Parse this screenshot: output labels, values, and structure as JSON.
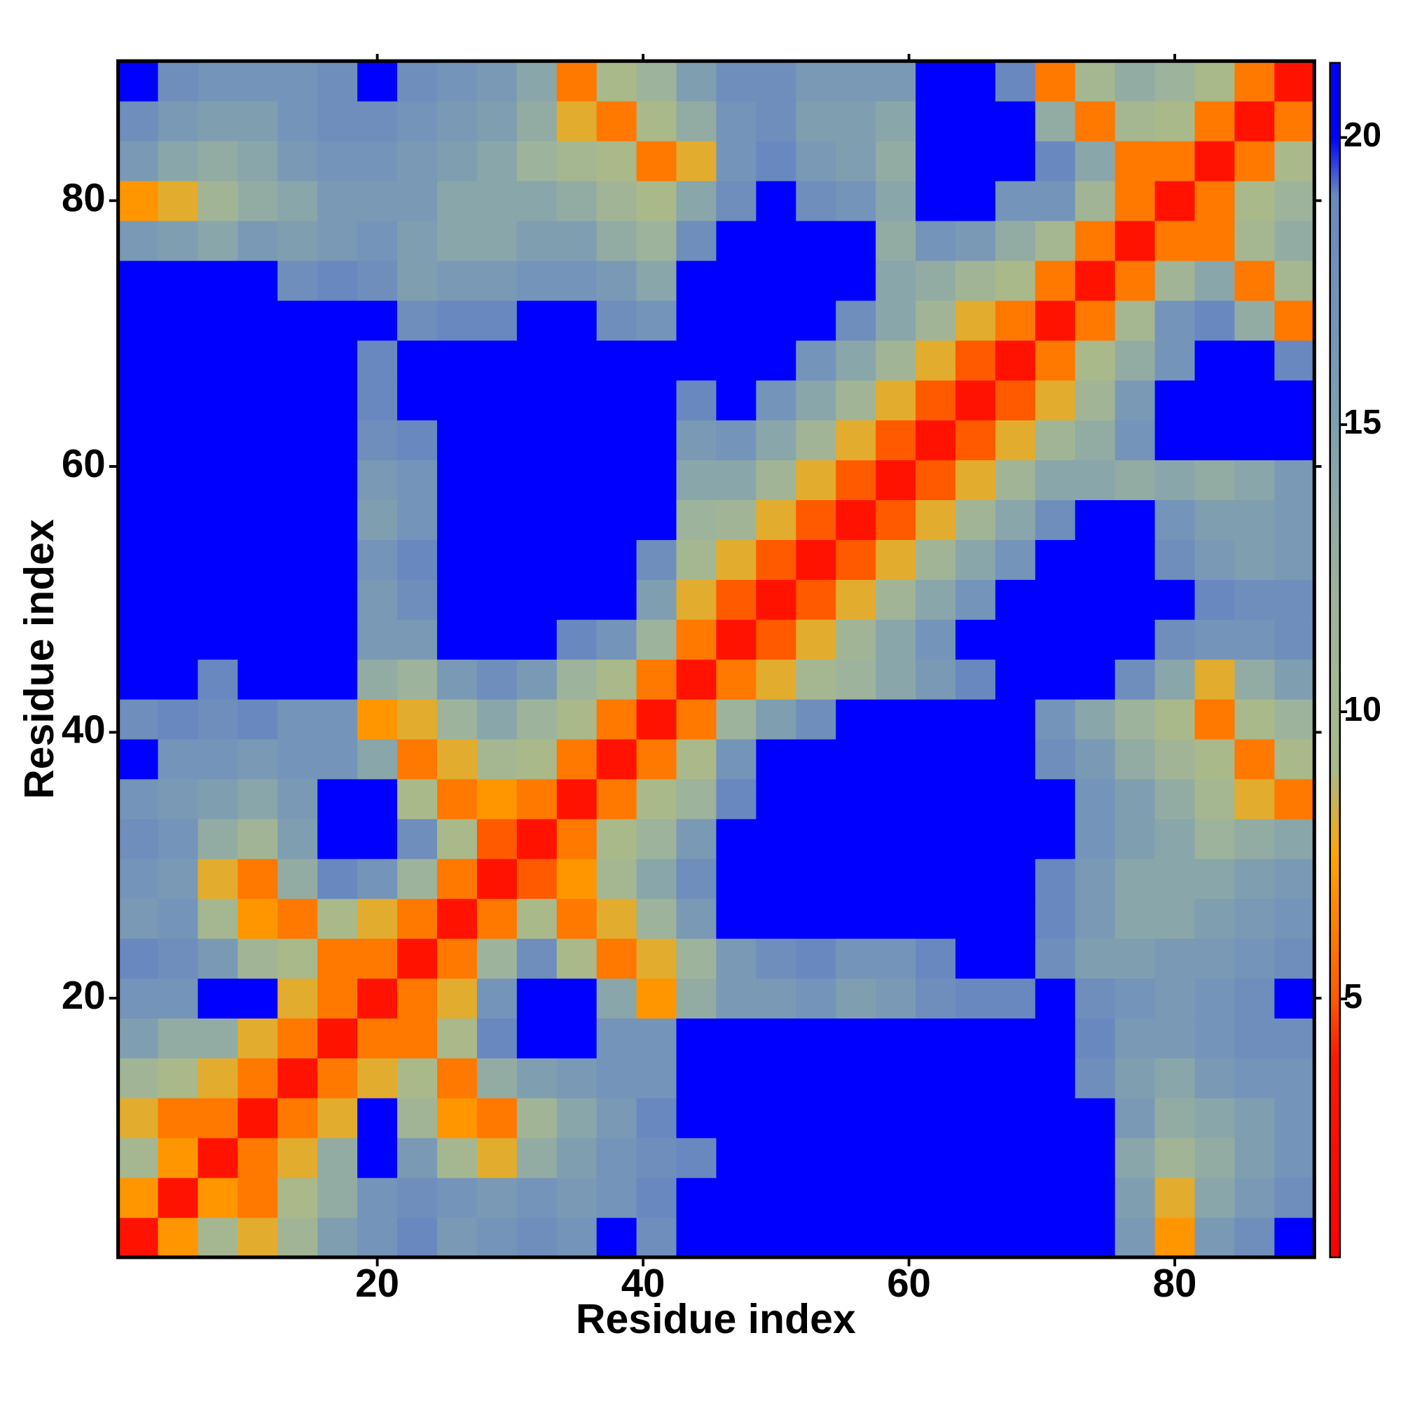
{
  "chart_data": {
    "type": "heatmap",
    "xlabel": "Residue index",
    "ylabel": "Residue index",
    "xbins": [
      0.5,
      3.5,
      6.5,
      9.5,
      12.5,
      15.5,
      18.5,
      21.5,
      24.5,
      27.5,
      30.5,
      33.5,
      36.5,
      39.5,
      42.5,
      45.5,
      48.5,
      51.5,
      54.5,
      57.5,
      60.5,
      63.5,
      66.5,
      69.5,
      72.5,
      75.5,
      78.5,
      81.5,
      84.5,
      87.5,
      90.5
    ],
    "ybins": [
      0.5,
      3.5,
      6.5,
      9.5,
      12.5,
      15.5,
      18.5,
      21.5,
      24.5,
      27.5,
      30.5,
      33.5,
      36.5,
      39.5,
      42.5,
      45.5,
      48.5,
      51.5,
      54.5,
      57.5,
      60.5,
      63.5,
      66.5,
      69.5,
      72.5,
      75.5,
      78.5,
      81.5,
      84.5,
      87.5,
      90.5
    ],
    "xlim": [
      0.5,
      90.5
    ],
    "ylim": [
      0.5,
      90.5
    ],
    "xticks": [
      20,
      40,
      60,
      80
    ],
    "yticks": [
      20,
      40,
      60,
      80
    ],
    "zlim": [
      0.5,
      21.3
    ],
    "zticks": [
      5,
      10,
      15,
      20
    ],
    "colorscale": [
      [
        0.5,
        "#ff0000"
      ],
      [
        4,
        "#ff1a00"
      ],
      [
        5,
        "#ff5a00"
      ],
      [
        7.5,
        "#ffa500"
      ],
      [
        9,
        "#a9b98a"
      ],
      [
        12,
        "#9db39c"
      ],
      [
        15,
        "#7f9fb1"
      ],
      [
        19,
        "#6a88c0"
      ],
      [
        20,
        "#0000ff"
      ],
      [
        21.3,
        "#0000ff"
      ]
    ],
    "z": [
      [
        3,
        7,
        10,
        8,
        11,
        15,
        17,
        19,
        16,
        17,
        18,
        17,
        20,
        18,
        21,
        21,
        21,
        21,
        21,
        21,
        21,
        21,
        21,
        21,
        21,
        16,
        7,
        16,
        18,
        20
      ],
      [
        7,
        3,
        7,
        6,
        9,
        13,
        17,
        18,
        17,
        16,
        17,
        16,
        17,
        19,
        21,
        21,
        21,
        21,
        21,
        21,
        21,
        21,
        21,
        21,
        21,
        15,
        8,
        14,
        16,
        18
      ],
      [
        10,
        7,
        3,
        6,
        8,
        13,
        20,
        16,
        10,
        8,
        13,
        15,
        17,
        18,
        19,
        21,
        21,
        21,
        21,
        21,
        21,
        21,
        21,
        21,
        21,
        14,
        11,
        13,
        15,
        17
      ],
      [
        8,
        6,
        6,
        3,
        6,
        8,
        20,
        11,
        7,
        6,
        11,
        14,
        16,
        19,
        21,
        21,
        21,
        21,
        21,
        21,
        21,
        21,
        21,
        21,
        21,
        16,
        13,
        14,
        15,
        17
      ],
      [
        11,
        9,
        8,
        6,
        3,
        6,
        8,
        9,
        6,
        13,
        15,
        16,
        17,
        17,
        20,
        21,
        21,
        21,
        21,
        21,
        21,
        21,
        21,
        20,
        18,
        15,
        14,
        16,
        17,
        17
      ],
      [
        15,
        13,
        13,
        8,
        6,
        3,
        6,
        6,
        9,
        19,
        21,
        20,
        17,
        17,
        20,
        21,
        21,
        21,
        21,
        21,
        21,
        21,
        21,
        21,
        19,
        16,
        16,
        17,
        18,
        18
      ],
      [
        17,
        17,
        20,
        20,
        8,
        6,
        3,
        6,
        8,
        17,
        21,
        20,
        14,
        7,
        13,
        16,
        16,
        17,
        15,
        16,
        18,
        19,
        19,
        20,
        18,
        17,
        16,
        17,
        18,
        20
      ],
      [
        19,
        18,
        16,
        11,
        9,
        6,
        6,
        3,
        6,
        12,
        18,
        9,
        6,
        8,
        12,
        16,
        18,
        19,
        17,
        17,
        19,
        20,
        20,
        18,
        15,
        15,
        16,
        16,
        17,
        18
      ],
      [
        16,
        17,
        10,
        7,
        6,
        9,
        8,
        6,
        3,
        6,
        9,
        6,
        8,
        12,
        16,
        20,
        21,
        21,
        21,
        21,
        21,
        21,
        21,
        19,
        16,
        14,
        14,
        15,
        16,
        17
      ],
      [
        17,
        16,
        8,
        6,
        13,
        19,
        17,
        12,
        6,
        3,
        5,
        7,
        10,
        14,
        18,
        21,
        21,
        21,
        21,
        21,
        21,
        21,
        21,
        19,
        16,
        14,
        14,
        14,
        15,
        16
      ],
      [
        18,
        17,
        13,
        11,
        15,
        21,
        21,
        18,
        9,
        5,
        3,
        6,
        9,
        12,
        16,
        20,
        21,
        21,
        21,
        21,
        21,
        21,
        21,
        20,
        17,
        15,
        14,
        12,
        13,
        14
      ],
      [
        17,
        16,
        15,
        14,
        16,
        20,
        20,
        9,
        6,
        7,
        6,
        3,
        6,
        9,
        12,
        19,
        21,
        21,
        21,
        21,
        21,
        21,
        21,
        20,
        17,
        15,
        13,
        10,
        8,
        6
      ],
      [
        20,
        17,
        17,
        16,
        17,
        17,
        14,
        6,
        8,
        10,
        9,
        6,
        3,
        6,
        9,
        17,
        20,
        21,
        21,
        21,
        21,
        21,
        20,
        18,
        16,
        13,
        11,
        9,
        6,
        9
      ],
      [
        18,
        19,
        18,
        19,
        17,
        17,
        7,
        8,
        12,
        14,
        12,
        9,
        6,
        3,
        6,
        12,
        15,
        18,
        20,
        20,
        20,
        21,
        20,
        17,
        14,
        12,
        9,
        6,
        9,
        12
      ],
      [
        21,
        21,
        19,
        21,
        20,
        20,
        13,
        12,
        16,
        18,
        16,
        12,
        9,
        6,
        3,
        6,
        8,
        10,
        12,
        14,
        16,
        19,
        20,
        20,
        20,
        18,
        14,
        8,
        13,
        15
      ],
      [
        21,
        21,
        21,
        21,
        21,
        21,
        16,
        16,
        20,
        21,
        20,
        19,
        17,
        12,
        6,
        3,
        5,
        8,
        11,
        14,
        17,
        20,
        21,
        21,
        21,
        20,
        18,
        17,
        17,
        18
      ],
      [
        21,
        21,
        21,
        21,
        21,
        21,
        16,
        18,
        21,
        21,
        21,
        21,
        20,
        15,
        8,
        5,
        3,
        5,
        8,
        11,
        14,
        17,
        20,
        21,
        21,
        21,
        20,
        19,
        18,
        18
      ],
      [
        21,
        21,
        21,
        21,
        21,
        21,
        17,
        19,
        21,
        21,
        21,
        21,
        21,
        18,
        10,
        8,
        5,
        3,
        5,
        8,
        11,
        14,
        17,
        20,
        21,
        21,
        18,
        16,
        15,
        16
      ],
      [
        21,
        21,
        21,
        21,
        21,
        21,
        15,
        17,
        21,
        21,
        21,
        21,
        21,
        20,
        12,
        11,
        8,
        5,
        3,
        5,
        8,
        11,
        14,
        18,
        20,
        20,
        17,
        15,
        15,
        16
      ],
      [
        21,
        21,
        21,
        21,
        21,
        21,
        16,
        17,
        21,
        21,
        21,
        21,
        21,
        20,
        14,
        14,
        11,
        8,
        5,
        3,
        5,
        8,
        11,
        14,
        14,
        13,
        14,
        13,
        14,
        16
      ],
      [
        21,
        21,
        21,
        21,
        21,
        21,
        18,
        19,
        21,
        21,
        21,
        21,
        21,
        20,
        16,
        17,
        14,
        11,
        8,
        5,
        3,
        5,
        8,
        11,
        13,
        17,
        20,
        21,
        21,
        20
      ],
      [
        21,
        21,
        21,
        21,
        21,
        21,
        19,
        20,
        21,
        21,
        21,
        21,
        21,
        21,
        19,
        20,
        17,
        14,
        11,
        8,
        5,
        3,
        5,
        8,
        11,
        16,
        20,
        21,
        21,
        20
      ],
      [
        21,
        21,
        21,
        21,
        21,
        21,
        19,
        20,
        21,
        21,
        21,
        21,
        20,
        20,
        20,
        21,
        20,
        17,
        14,
        11,
        8,
        5,
        3,
        6,
        9,
        13,
        17,
        20,
        21,
        19
      ],
      [
        21,
        21,
        21,
        21,
        20,
        21,
        20,
        18,
        19,
        19,
        20,
        20,
        18,
        17,
        20,
        21,
        21,
        20,
        18,
        14,
        11,
        8,
        6,
        3,
        6,
        10,
        17,
        19,
        13,
        6
      ],
      [
        21,
        21,
        21,
        21,
        18,
        19,
        18,
        15,
        16,
        16,
        17,
        17,
        16,
        14,
        20,
        21,
        21,
        21,
        20,
        14,
        13,
        11,
        9,
        6,
        3,
        6,
        11,
        14,
        6,
        10
      ],
      [
        16,
        15,
        14,
        16,
        15,
        16,
        17,
        15,
        14,
        14,
        15,
        15,
        13,
        12,
        18,
        20,
        21,
        21,
        20,
        13,
        17,
        16,
        13,
        10,
        6,
        3,
        6,
        6,
        10,
        13
      ],
      [
        7,
        8,
        11,
        13,
        14,
        16,
        16,
        16,
        14,
        14,
        14,
        13,
        11,
        9,
        14,
        18,
        20,
        18,
        17,
        14,
        20,
        20,
        17,
        17,
        11,
        6,
        3,
        6,
        9,
        12
      ],
      [
        16,
        14,
        13,
        14,
        16,
        17,
        17,
        16,
        15,
        14,
        12,
        10,
        9,
        6,
        8,
        17,
        19,
        16,
        15,
        13,
        21,
        21,
        20,
        19,
        14,
        6,
        6,
        3,
        6,
        9
      ],
      [
        18,
        16,
        15,
        15,
        17,
        18,
        18,
        17,
        16,
        15,
        13,
        8,
        6,
        9,
        13,
        17,
        18,
        15,
        15,
        14,
        21,
        21,
        21,
        13,
        6,
        10,
        9,
        6,
        3,
        6
      ],
      [
        20,
        18,
        17,
        17,
        17,
        18,
        20,
        18,
        17,
        16,
        14,
        6,
        9,
        12,
        15,
        18,
        18,
        16,
        16,
        16,
        20,
        20,
        19,
        6,
        10,
        13,
        12,
        9,
        6,
        3
      ]
    ]
  }
}
